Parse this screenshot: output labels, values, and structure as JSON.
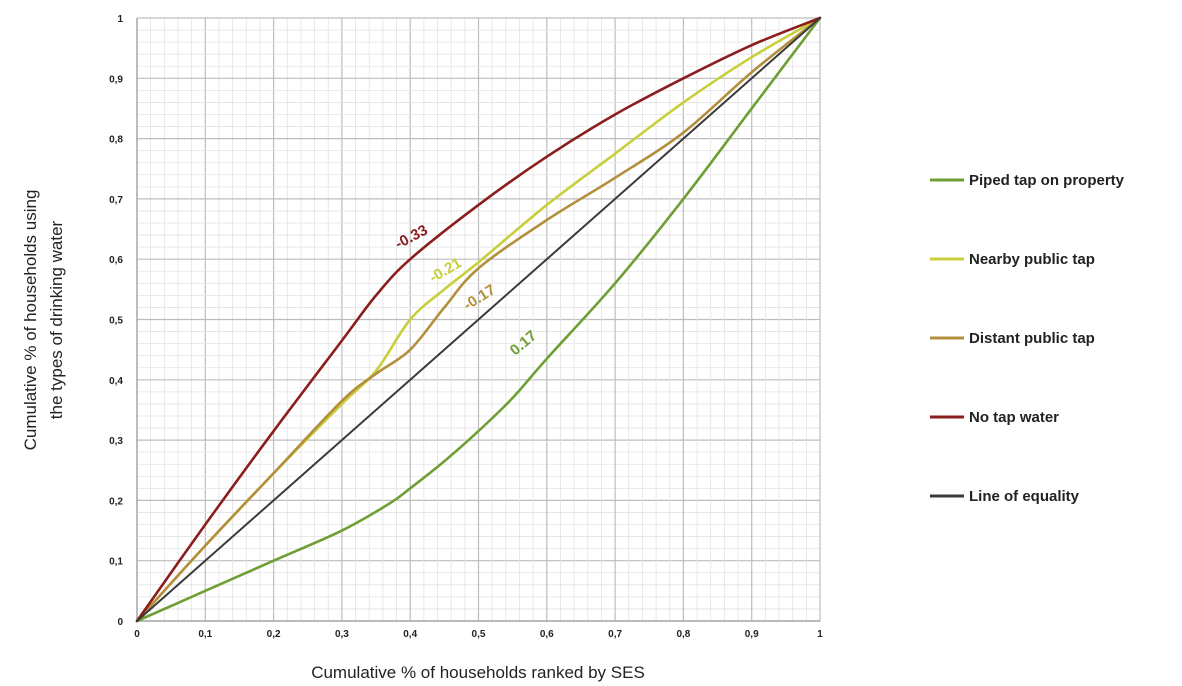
{
  "chart_data": {
    "type": "line",
    "xlabel": "Cumulative % of households ranked by SES",
    "ylabel": "Cumulative % of households using the types of drinking water",
    "ylabel_lines": [
      "Cumulative % of households using",
      "the types of drinking water"
    ],
    "xlim": [
      0,
      1
    ],
    "ylim": [
      0,
      1
    ],
    "major_ticks": [
      0,
      0.1,
      0.2,
      0.3,
      0.4,
      0.5,
      0.6,
      0.7,
      0.8,
      0.9,
      1
    ],
    "x_tick_labels": [
      "0",
      "0,1",
      "0,2",
      "0,3",
      "0,4",
      "0,5",
      "0,6",
      "0,7",
      "0,8",
      "0,9",
      "1"
    ],
    "y_tick_labels": [
      "0",
      "0,1",
      "0,2",
      "0,3",
      "0,4",
      "0,5",
      "0,6",
      "0,7",
      "0,8",
      "0,9",
      "1"
    ],
    "grid": true,
    "minor_grid_step": 0.02,
    "legend_position": "right",
    "series": [
      {
        "name": "Piped tap on property",
        "color": "#6e9e34",
        "label": "0.17",
        "label_at": [
          0.57,
          0.455
        ],
        "label_angle": -40,
        "points": [
          [
            0,
            0
          ],
          [
            0.1,
            0.05
          ],
          [
            0.2,
            0.1
          ],
          [
            0.3,
            0.15
          ],
          [
            0.37,
            0.195
          ],
          [
            0.4,
            0.22
          ],
          [
            0.45,
            0.265
          ],
          [
            0.5,
            0.315
          ],
          [
            0.55,
            0.37
          ],
          [
            0.6,
            0.435
          ],
          [
            0.7,
            0.56
          ],
          [
            0.8,
            0.7
          ],
          [
            0.9,
            0.85
          ],
          [
            1,
            1
          ]
        ]
      },
      {
        "name": "Nearby public tap",
        "color": "#c8cf3a",
        "label": "-0.21",
        "label_at": [
          0.455,
          0.575
        ],
        "label_angle": -30,
        "points": [
          [
            0,
            0
          ],
          [
            0.1,
            0.125
          ],
          [
            0.2,
            0.245
          ],
          [
            0.3,
            0.36
          ],
          [
            0.35,
            0.415
          ],
          [
            0.4,
            0.5
          ],
          [
            0.45,
            0.55
          ],
          [
            0.5,
            0.595
          ],
          [
            0.6,
            0.69
          ],
          [
            0.7,
            0.775
          ],
          [
            0.8,
            0.86
          ],
          [
            0.9,
            0.935
          ],
          [
            1,
            1
          ]
        ]
      },
      {
        "name": "Distant public tap",
        "color": "#b38f3c",
        "label": "-0.17",
        "label_at": [
          0.505,
          0.53
        ],
        "label_angle": -32,
        "points": [
          [
            0,
            0
          ],
          [
            0.1,
            0.125
          ],
          [
            0.2,
            0.245
          ],
          [
            0.3,
            0.365
          ],
          [
            0.35,
            0.41
          ],
          [
            0.4,
            0.45
          ],
          [
            0.45,
            0.52
          ],
          [
            0.5,
            0.585
          ],
          [
            0.6,
            0.665
          ],
          [
            0.7,
            0.735
          ],
          [
            0.8,
            0.81
          ],
          [
            0.9,
            0.91
          ],
          [
            1,
            1
          ]
        ]
      },
      {
        "name": "No tap water",
        "color": "#8b1d1d",
        "label": "-0.33",
        "label_at": [
          0.405,
          0.63
        ],
        "label_angle": -28,
        "points": [
          [
            0,
            0
          ],
          [
            0.1,
            0.16
          ],
          [
            0.2,
            0.315
          ],
          [
            0.3,
            0.465
          ],
          [
            0.35,
            0.54
          ],
          [
            0.4,
            0.6
          ],
          [
            0.5,
            0.69
          ],
          [
            0.6,
            0.77
          ],
          [
            0.7,
            0.84
          ],
          [
            0.8,
            0.9
          ],
          [
            0.9,
            0.955
          ],
          [
            1,
            1
          ]
        ]
      },
      {
        "name": "Line of equality",
        "color": "#3a3a3a",
        "points": [
          [
            0,
            0
          ],
          [
            1,
            1
          ]
        ]
      }
    ]
  }
}
